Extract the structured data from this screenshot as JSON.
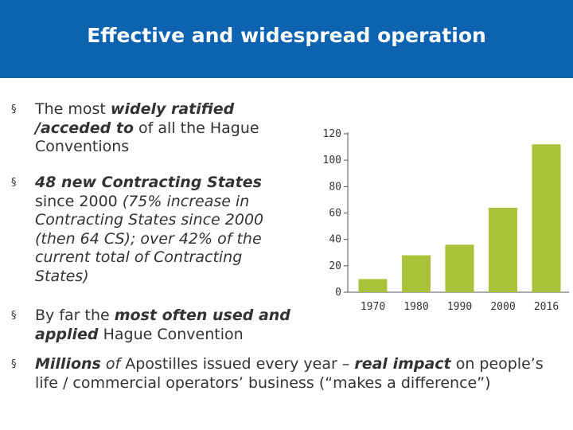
{
  "slide": {
    "title": "Effective and widespread operation"
  },
  "bullets": [
    {
      "mark": "§",
      "parts": [
        {
          "text": "The most ",
          "style": "normal"
        },
        {
          "text": "widely ratified /acceded to",
          "style": "bold-italic"
        },
        {
          "text": " of all the Hague Conventions",
          "style": "normal"
        }
      ]
    },
    {
      "mark": "§",
      "parts": [
        {
          "text": "48 new Contracting States",
          "style": "bold-italic"
        },
        {
          "text": " since 2000 ",
          "style": "normal"
        },
        {
          "text": "(75% increase in Contracting States since 2000 (then 64 CS); over 42% of the current total of Contracting States)",
          "style": "italic"
        }
      ]
    },
    {
      "mark": "§",
      "parts": [
        {
          "text": "By far the ",
          "style": "normal"
        },
        {
          "text": "most often used and applied",
          "style": "bold-italic"
        },
        {
          "text": " Hague Convention",
          "style": "normal"
        }
      ]
    },
    {
      "mark": "§",
      "parts": [
        {
          "text": "Millions",
          "style": "bold-italic"
        },
        {
          "text": " of",
          "style": "italic"
        },
        {
          "text": " Apostilles issued every year – ",
          "style": "normal"
        },
        {
          "text": "real impact",
          "style": "bold-italic"
        },
        {
          "text": " on people’s life / commercial operators’ business (“makes a difference”)",
          "style": "normal"
        }
      ]
    }
  ],
  "chart_data": {
    "type": "bar",
    "categories": [
      "1970",
      "1980",
      "1990",
      "2000",
      "2016"
    ],
    "values": [
      10,
      28,
      36,
      64,
      112
    ],
    "yticks": [
      "0",
      "20",
      "40",
      "60",
      "80",
      "100",
      "120"
    ],
    "ylim": [
      0,
      120
    ],
    "title": "",
    "xlabel": "",
    "ylabel": "",
    "bar_color": "#a8c23a"
  }
}
